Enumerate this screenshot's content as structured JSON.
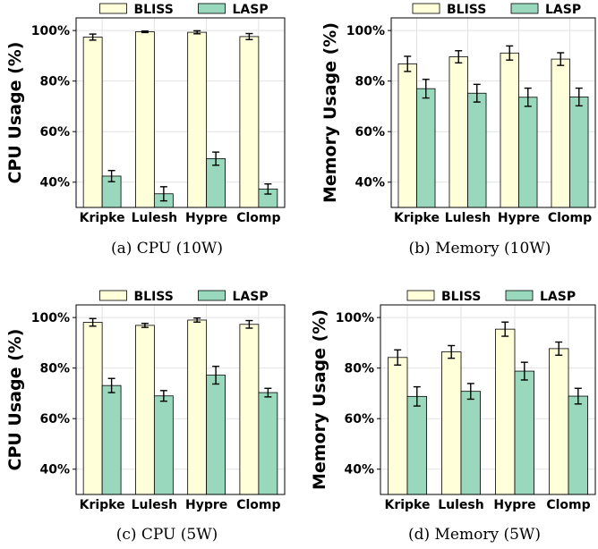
{
  "colors": {
    "bliss": "#FFFFD9",
    "lasp": "#99D8BC",
    "bar_edge": "#000000",
    "grid": "#E2E2E2"
  },
  "chart_data": [
    {
      "type": "bar",
      "caption": "(a)  CPU  (10W)",
      "ylabel": "CPU Usage (%)",
      "ylim": [
        30,
        105
      ],
      "yticks": [
        "40%",
        "60%",
        "80%",
        "100%"
      ],
      "ytick_values": [
        40,
        60,
        80,
        100
      ],
      "grid": true,
      "legend": "top",
      "categories": [
        "Kripke",
        "Lulesh",
        "Hypre",
        "Clomp"
      ],
      "series": [
        {
          "name": "BLISS",
          "values": [
            97.4,
            99.5,
            99.3,
            97.6
          ],
          "errors": [
            1.2,
            0.3,
            0.6,
            1.2
          ]
        },
        {
          "name": "LASP",
          "values": [
            42.4,
            35.4,
            49.3,
            37.3
          ],
          "errors": [
            2.2,
            2.8,
            2.6,
            2.0
          ]
        }
      ]
    },
    {
      "type": "bar",
      "caption": "(b)  Memory  (10W)",
      "ylabel": "Memory Usage (%)",
      "ylim": [
        30,
        105
      ],
      "yticks": [
        "40%",
        "60%",
        "80%",
        "100%"
      ],
      "ytick_values": [
        40,
        60,
        80,
        100
      ],
      "grid": true,
      "legend": "top",
      "categories": [
        "Kripke",
        "Lulesh",
        "Hypre",
        "Clomp"
      ],
      "series": [
        {
          "name": "BLISS",
          "values": [
            86.8,
            89.6,
            91.1,
            88.7
          ],
          "errors": [
            3.0,
            2.4,
            2.8,
            2.5
          ]
        },
        {
          "name": "LASP",
          "values": [
            77.0,
            75.2,
            73.6,
            73.7
          ],
          "errors": [
            3.7,
            3.5,
            3.6,
            3.5
          ]
        }
      ]
    },
    {
      "type": "bar",
      "caption": "(c)  CPU  (5W)",
      "ylabel": "CPU Usage (%)",
      "ylim": [
        30,
        105
      ],
      "yticks": [
        "40%",
        "60%",
        "80%",
        "100%"
      ],
      "ytick_values": [
        40,
        60,
        80,
        100
      ],
      "grid": true,
      "legend": "top",
      "categories": [
        "Kripke",
        "Lulesh",
        "Hypre",
        "Clomp"
      ],
      "series": [
        {
          "name": "BLISS",
          "values": [
            98.1,
            96.9,
            99.0,
            97.3
          ],
          "errors": [
            1.5,
            0.8,
            0.8,
            1.5
          ]
        },
        {
          "name": "LASP",
          "values": [
            73.1,
            69.0,
            77.2,
            70.3
          ],
          "errors": [
            2.8,
            2.1,
            3.5,
            1.7
          ]
        }
      ]
    },
    {
      "type": "bar",
      "caption": "(d)  Memory  (5W)",
      "ylabel": "Memory Usage (%)",
      "ylim": [
        30,
        105
      ],
      "yticks": [
        "40%",
        "60%",
        "80%",
        "100%"
      ],
      "ytick_values": [
        40,
        60,
        80,
        100
      ],
      "grid": true,
      "legend": "top",
      "categories": [
        "Kripke",
        "Lulesh",
        "Hypre",
        "Clomp"
      ],
      "series": [
        {
          "name": "BLISS",
          "values": [
            84.2,
            86.4,
            95.4,
            87.7
          ],
          "errors": [
            3.0,
            2.5,
            2.8,
            2.6
          ]
        },
        {
          "name": "LASP",
          "values": [
            68.8,
            70.8,
            78.8,
            68.9
          ],
          "errors": [
            3.8,
            3.1,
            3.5,
            3.1
          ]
        }
      ]
    }
  ]
}
